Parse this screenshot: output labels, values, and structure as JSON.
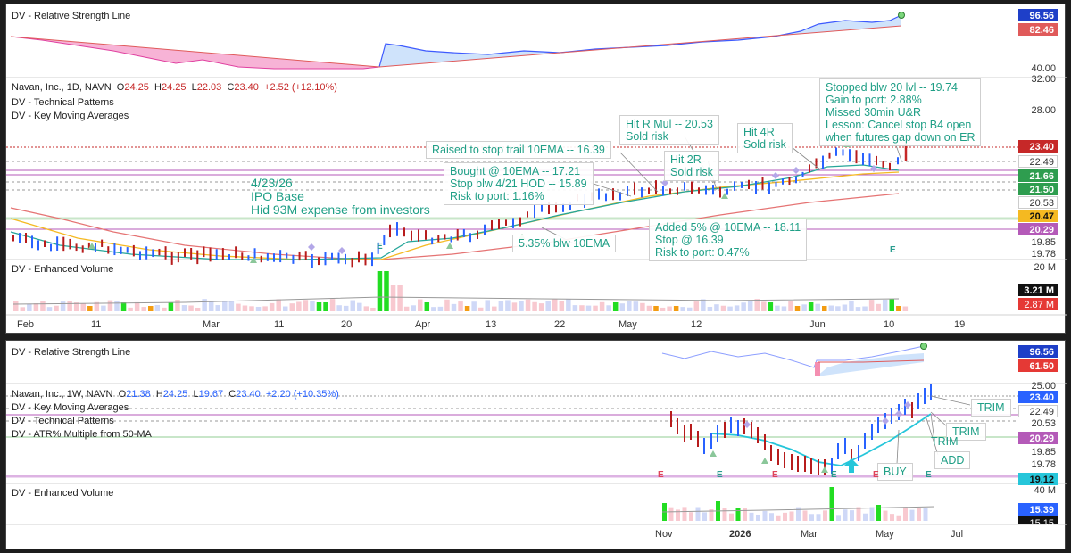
{
  "top": {
    "rs_line": {
      "title": "DV - Relative Strength Line",
      "tag_blue": "96.56",
      "tag_red": "82.46",
      "axis_label": "40.00"
    },
    "header": {
      "name": "Navan, Inc., 1D, NAVN",
      "o_label": "O",
      "o": "24.25",
      "h_label": "H",
      "h": "24.25",
      "l_label": "L",
      "l": "22.03",
      "c_label": "C",
      "c": "23.40",
      "change": "+2.52 (+12.10%)"
    },
    "indicators": [
      "DV - Technical Patterns",
      "DV - Key Moving Averages"
    ],
    "axis_labels": [
      "32.00",
      "28.00",
      "19.85",
      "19.78"
    ],
    "price_tags": [
      {
        "value": "23.40",
        "bg": "#c62828",
        "fg": "#ffffff"
      },
      {
        "value": "22.49",
        "bg": "#ffffff",
        "fg": "#333333"
      },
      {
        "value": "21.66",
        "bg": "#2e9d4f",
        "fg": "#ffffff"
      },
      {
        "value": "21.50",
        "bg": "#2e9d4f",
        "fg": "#ffffff"
      },
      {
        "value": "20.53",
        "bg": "#ffffff",
        "fg": "#333333"
      },
      {
        "value": "20.47",
        "bg": "#f5b921",
        "fg": "#111111"
      },
      {
        "value": "20.29",
        "bg": "#b45ab8",
        "fg": "#ffffff"
      }
    ],
    "volume": {
      "title": "DV - Enhanced Volume",
      "axis_label": "20 M",
      "tag_black": "3.21 M",
      "tag_red": "2.87 M"
    },
    "months": [
      "Feb",
      "11",
      "Mar",
      "11",
      "20",
      "Apr",
      "13",
      "22",
      "May",
      "12",
      "Jun",
      "10",
      "19"
    ],
    "annotations": {
      "ipo": "4/23/26\nIPO Base\nHid 93M expense from investors",
      "raised": "Raised to stop trail 10EMA -- 16.39",
      "bought": "Bought @ 10EMA -- 17.21\nStop blw 4/21 HOD -- 15.89\nRisk to port: 1.16%",
      "blw": "5.35% blw 10EMA",
      "added": "Added 5% @ 10EMA -- 18.11\nStop @ 16.39\nRisk to port: 0.47%",
      "hit2r": "Hit 2R\nSold risk",
      "hitrmul": "Hit R Mul -- 20.53\nSold risk",
      "hit4r": "Hit 4R\nSold risk",
      "stopped": "Stopped blw 20 lvl -- 19.74\nGain to port: 2.88%\nMissed 30min U&R\nLesson: Cancel stop B4 open\nwhen futures gap down on ER"
    },
    "e_marks": [
      "E",
      "E"
    ],
    "colors": {
      "up": "#2962ff",
      "down": "#b71c1c",
      "ema10": "#26a69a",
      "ma20": "#f5b921",
      "ma200": "#e57373",
      "rs_fill_up": "#bbdefb",
      "rs_fill_down": "#f48fb1"
    }
  },
  "bottom": {
    "rs_line": {
      "title": "DV - Relative Strength Line",
      "tag_blue": "96.56",
      "tag_red": "61.50"
    },
    "header": {
      "name": "Navan, Inc., 1W, NAVN",
      "o_label": "O",
      "o": "21.38",
      "h_label": "H",
      "h": "24.25",
      "l_label": "L",
      "l": "19.67",
      "c_label": "C",
      "c": "23.40",
      "change": "+2.20 (+10.35%)"
    },
    "indicators": [
      "DV - Key Moving Averages",
      "DV - Technical Patterns",
      "DV - ATR% Multiple from 50-MA"
    ],
    "axis_labels": [
      "25.00",
      "20.53",
      "19.85",
      "19.78",
      "40 M"
    ],
    "price_tags": [
      {
        "value": "23.40",
        "bg": "#2962ff",
        "fg": "#ffffff"
      },
      {
        "value": "22.49",
        "bg": "#ffffff",
        "fg": "#333333"
      },
      {
        "value": "20.29",
        "bg": "#b45ab8",
        "fg": "#ffffff"
      },
      {
        "value": "19.12",
        "bg": "#26c6da",
        "fg": "#111111"
      }
    ],
    "volume": {
      "title": "DV - Enhanced Volume",
      "tag_blue": "15.39 M",
      "tag_black": "15.15 M"
    },
    "months": [
      "Nov",
      "2026",
      "Mar",
      "May",
      "Jul"
    ],
    "annotations": {
      "trim1": "TRIM",
      "trim2": "TRIM",
      "trim3": "TRIM",
      "add": "ADD",
      "buy": "BUY"
    },
    "e_marks": [
      "E",
      "E",
      "E",
      "E",
      "E",
      "E"
    ]
  }
}
